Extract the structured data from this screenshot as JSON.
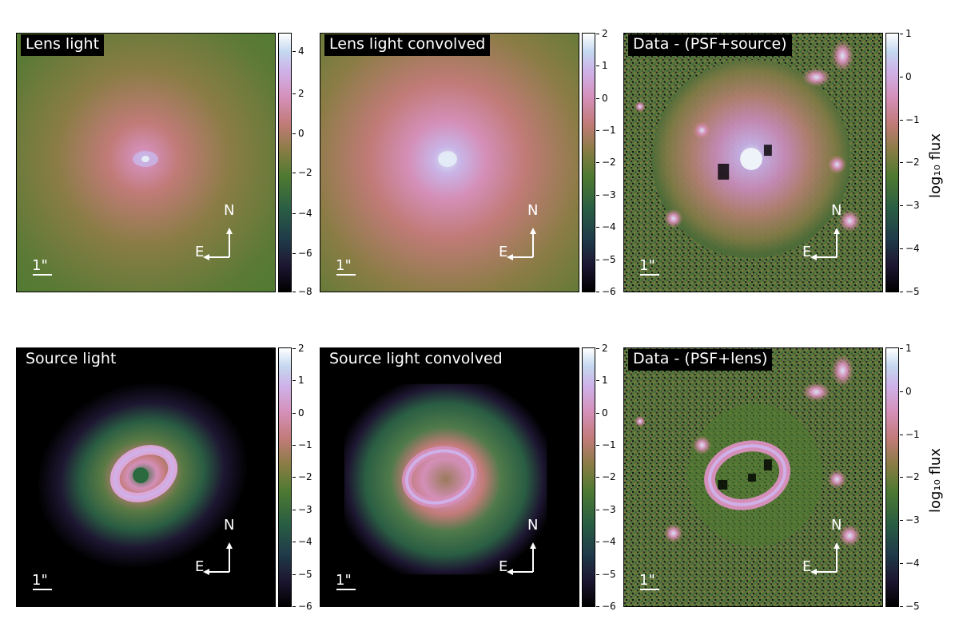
{
  "panels": [
    {
      "title": "Lens light",
      "scale_label": "1\"",
      "compass": {
        "n": "N",
        "e": "E"
      },
      "colorbar": {
        "ticks": [
          "4",
          "2",
          "0",
          "−2",
          "−4",
          "−6",
          "−8"
        ],
        "label": ""
      }
    },
    {
      "title": "Lens light convolved",
      "scale_label": "1\"",
      "compass": {
        "n": "N",
        "e": "E"
      },
      "colorbar": {
        "ticks": [
          "2",
          "1",
          "0",
          "−1",
          "−2",
          "−3",
          "−4",
          "−5",
          "−6"
        ],
        "label": ""
      }
    },
    {
      "title": "Data - (PSF+source)",
      "scale_label": "1\"",
      "compass": {
        "n": "N",
        "e": "E"
      },
      "colorbar": {
        "ticks": [
          "1",
          "0",
          "−1",
          "−2",
          "−3",
          "−4",
          "−5"
        ],
        "label": "log₁₀ flux"
      }
    },
    {
      "title": "Source light",
      "scale_label": "1\"",
      "compass": {
        "n": "N",
        "e": "E"
      },
      "colorbar": {
        "ticks": [
          "2",
          "1",
          "0",
          "−1",
          "−2",
          "−3",
          "−4",
          "−5",
          "−6"
        ],
        "label": ""
      }
    },
    {
      "title": "Source light convolved",
      "scale_label": "1\"",
      "compass": {
        "n": "N",
        "e": "E"
      },
      "colorbar": {
        "ticks": [
          "2",
          "1",
          "0",
          "−1",
          "−2",
          "−3",
          "−4",
          "−5",
          "−6"
        ],
        "label": ""
      }
    },
    {
      "title": "Data - (PSF+lens)",
      "scale_label": "1\"",
      "compass": {
        "n": "N",
        "e": "E"
      },
      "colorbar": {
        "ticks": [
          "1",
          "0",
          "−1",
          "−2",
          "−3",
          "−4",
          "−5"
        ],
        "label": "log₁₀ flux"
      }
    }
  ],
  "colormap": [
    "#000000",
    "#1d1631",
    "#1f3a4a",
    "#2a5e43",
    "#4f7a31",
    "#8a7c45",
    "#c17b78",
    "#d48fb8",
    "#cfb0e8",
    "#c4d8ef",
    "#ffffff"
  ]
}
